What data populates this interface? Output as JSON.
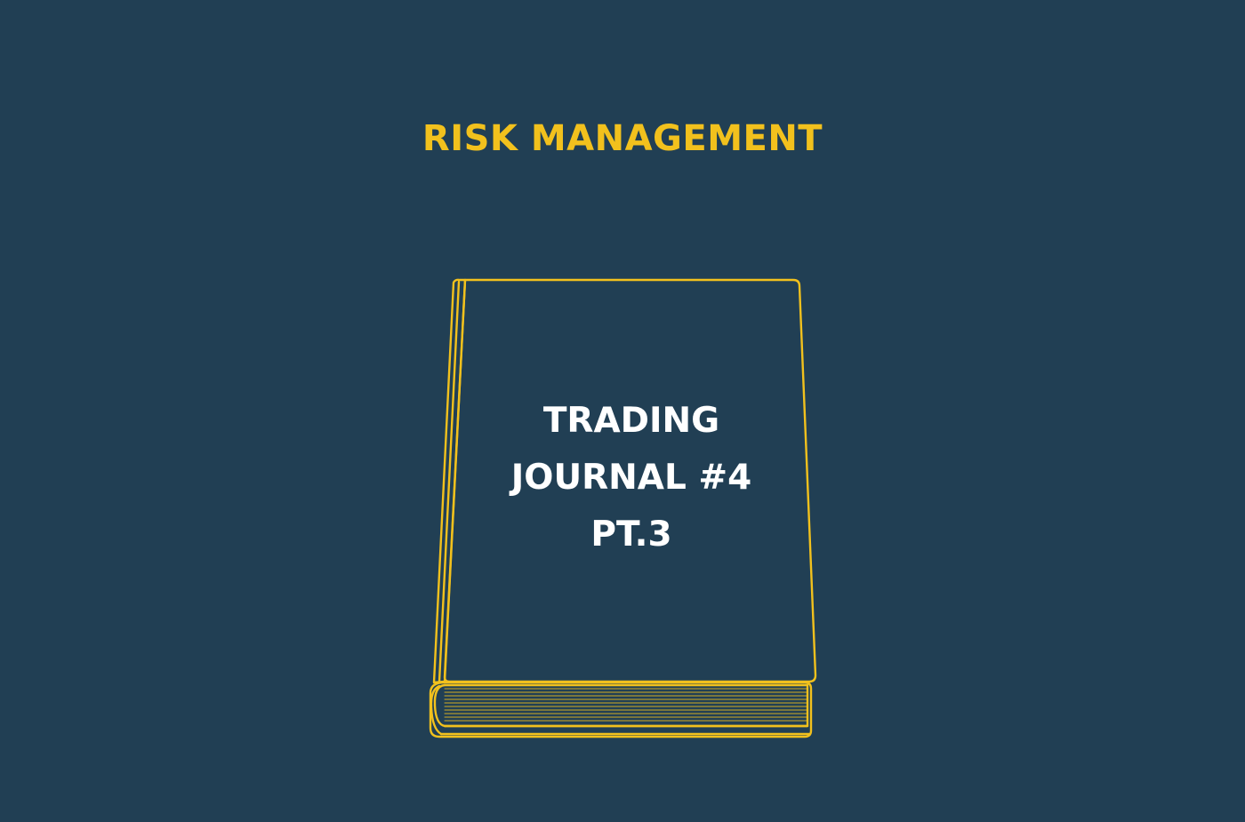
{
  "headline": "RISK MANAGEMENT",
  "cover": {
    "lines": [
      "TRADING",
      "JOURNAL #4",
      "PT.3"
    ]
  },
  "colors": {
    "background": "#213f54",
    "accent": "#f2c11d",
    "cover_text": "#ffffff"
  },
  "icons": {
    "book": "book-icon"
  }
}
